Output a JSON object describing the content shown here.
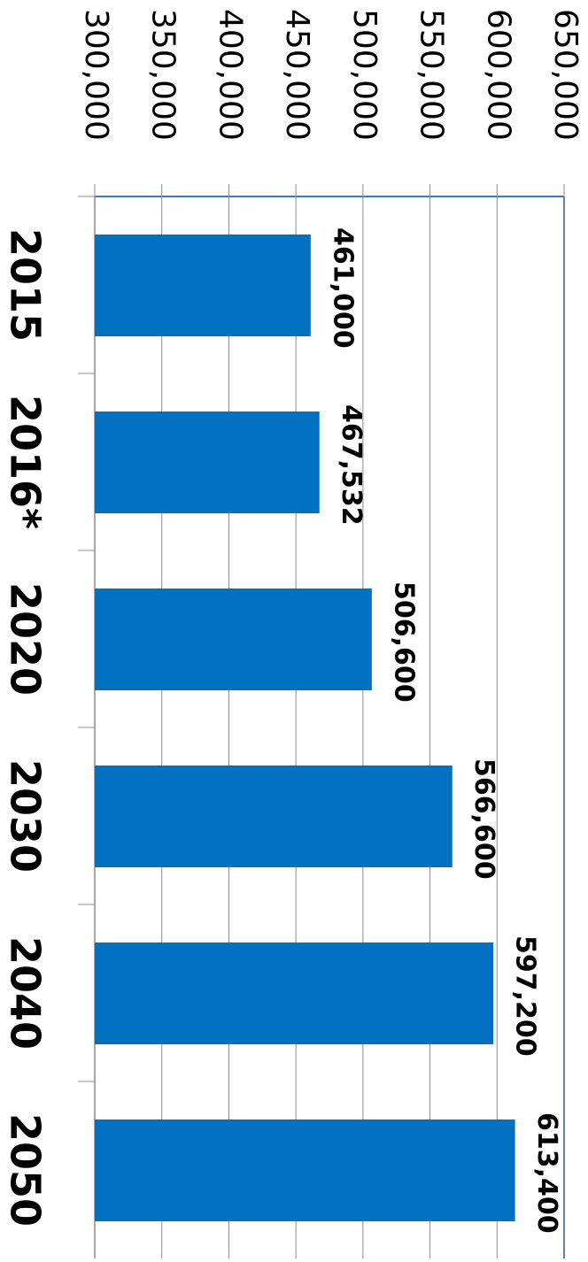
{
  "chart_data": {
    "type": "bar",
    "categories": [
      "2015",
      "2016*",
      "2020",
      "2030",
      "2040",
      "2050"
    ],
    "values": [
      461000,
      467532,
      506600,
      566600,
      597200,
      613400
    ],
    "value_labels": [
      "461,000",
      "467,532",
      "506,600",
      "566,600",
      "597,200",
      "613,400"
    ],
    "color": "#0070c0",
    "ylim": [
      300000,
      650000
    ],
    "yticks": [
      {
        "value": 300000,
        "label": "300,000"
      },
      {
        "value": 350000,
        "label": "350,000"
      },
      {
        "value": 400000,
        "label": "400,000"
      },
      {
        "value": 450000,
        "label": "450,000"
      },
      {
        "value": 500000,
        "label": "500,000"
      },
      {
        "value": 550000,
        "label": "550,000"
      },
      {
        "value": 600000,
        "label": "600,000"
      },
      {
        "value": 650000,
        "label": "650,000"
      }
    ],
    "grid": true
  }
}
